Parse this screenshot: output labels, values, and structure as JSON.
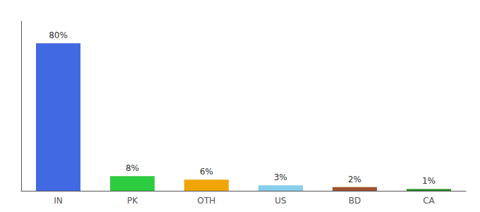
{
  "chart_data": {
    "type": "bar",
    "categories": [
      "IN",
      "PK",
      "OTH",
      "US",
      "BD",
      "CA"
    ],
    "values": [
      80,
      8,
      6,
      3,
      2,
      1
    ],
    "value_labels": [
      "80%",
      "8%",
      "6%",
      "3%",
      "2%",
      "1%"
    ],
    "colors": [
      "#4169e1",
      "#2ecc40",
      "#f0a500",
      "#87ceeb",
      "#a0522d",
      "#228b22"
    ],
    "ylim": [
      0,
      92
    ],
    "grid": false,
    "data_labels": true,
    "tick_labels": "x"
  }
}
